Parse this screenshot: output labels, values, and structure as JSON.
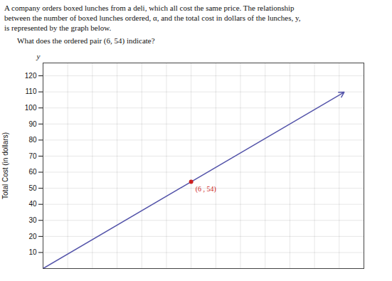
{
  "chart_data": {
    "type": "line",
    "title": "A company orders boxed lunches from a deli, which all cost the same price. The relationship\nbetween the number of boxed lunches ordered, α, and the total cost in dollars of the lunches, y,\nis represented by the graph below.",
    "subtitle": "What does the ordered pair (6, 54) indicate?",
    "ylabel": "Total Cost (in dollars)",
    "x": [
      0,
      12.2
    ],
    "values": [
      0,
      109.8
    ],
    "color": "#5555aa",
    "marker": "arrow",
    "xlim": [
      0,
      13
    ],
    "xticks": [
      0,
      1,
      2,
      3,
      4,
      5,
      6,
      7,
      8,
      9,
      10,
      11,
      12,
      13
    ],
    "ylim": [
      0,
      128
    ],
    "yticks": [
      10,
      20,
      30,
      40,
      50,
      60,
      70,
      80,
      90,
      100,
      110,
      120
    ],
    "grid": true,
    "tick_labels": "y",
    "annotations": [
      {
        "text": "(6 , 54)",
        "x": 6,
        "y": 54,
        "color": "#cc2222",
        "marker": "dot"
      },
      {
        "text": "y",
        "x": 0,
        "y": 128
      }
    ]
  }
}
